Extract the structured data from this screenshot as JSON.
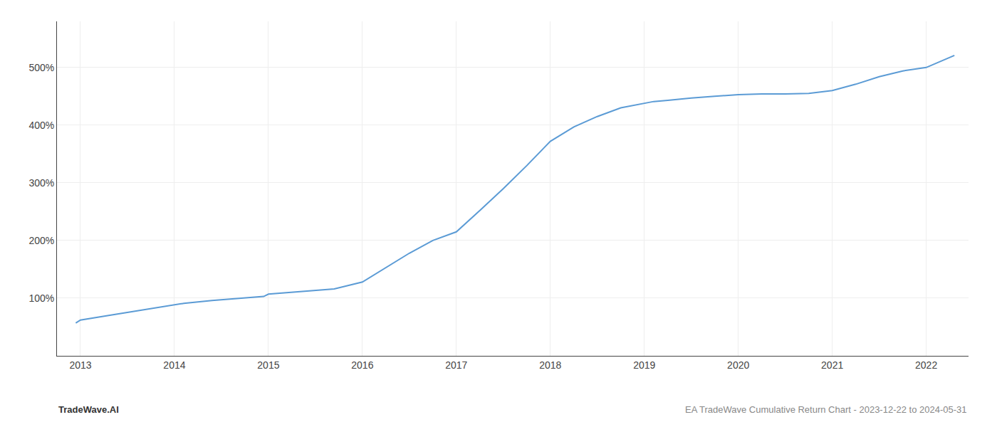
{
  "chart_data": {
    "type": "line",
    "x": [
      2012.95,
      2013.0,
      2013.3,
      2013.6,
      2013.9,
      2014.1,
      2014.4,
      2014.7,
      2014.95,
      2015.0,
      2015.3,
      2015.5,
      2015.7,
      2016.0,
      2016.25,
      2016.5,
      2016.75,
      2017.0,
      2017.25,
      2017.5,
      2017.75,
      2018.0,
      2018.25,
      2018.5,
      2018.75,
      2019.0,
      2019.1,
      2019.25,
      2019.5,
      2019.75,
      2020.0,
      2020.25,
      2020.5,
      2020.75,
      2021.0,
      2021.25,
      2021.5,
      2021.75,
      2022.0,
      2022.3
    ],
    "values": [
      57,
      62,
      70,
      78,
      86,
      91,
      96,
      100,
      103,
      107,
      111,
      113,
      116,
      128,
      153,
      178,
      200,
      215,
      252,
      290,
      330,
      372,
      397,
      415,
      430,
      438,
      441,
      443,
      447,
      450,
      453,
      454,
      454,
      455,
      460,
      471,
      484,
      494,
      500,
      521
    ],
    "color": "#5b9bd5",
    "xlim": [
      2012.75,
      2022.45
    ],
    "xticks": [
      2013,
      2014,
      2015,
      2016,
      2017,
      2018,
      2019,
      2020,
      2021,
      2022
    ],
    "ylim": [
      0,
      580
    ],
    "yticks": [
      {
        "value": 100,
        "label": "100%"
      },
      {
        "value": 200,
        "label": "200%"
      },
      {
        "value": 300,
        "label": "300%"
      },
      {
        "value": 400,
        "label": "400%"
      },
      {
        "value": 500,
        "label": "500%"
      }
    ],
    "grid": true,
    "annotations": [
      "TradeWave.AI",
      "EA TradeWave Cumulative Return Chart - 2023-12-22 to 2024-05-31"
    ]
  }
}
